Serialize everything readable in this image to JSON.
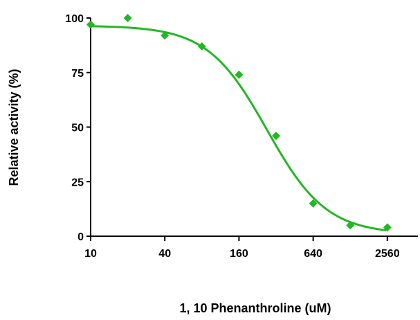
{
  "chart_data": {
    "type": "scatter",
    "title": "",
    "xlabel": "1, 10 Phenanthroline (uM)",
    "ylabel": "Relative activity (%)",
    "x_scale": "log2",
    "xlim": [
      10,
      3200
    ],
    "ylim": [
      0,
      100
    ],
    "x_ticks": [
      {
        "value": 10,
        "label": "10"
      },
      {
        "value": 40,
        "label": "40"
      },
      {
        "value": 160,
        "label": "160"
      },
      {
        "value": 640,
        "label": "640"
      },
      {
        "value": 2560,
        "label": "2560"
      }
    ],
    "y_ticks": [
      {
        "value": 0,
        "label": "0"
      },
      {
        "value": 25,
        "label": "25"
      },
      {
        "value": 50,
        "label": "50"
      },
      {
        "value": 75,
        "label": "75"
      },
      {
        "value": 100,
        "label": "100"
      }
    ],
    "grid": false,
    "legend": "none",
    "color": "#22b822",
    "marker": "diamond",
    "series": [
      {
        "points": [
          {
            "x": 10,
            "y": 97
          },
          {
            "x": 20,
            "y": 100
          },
          {
            "x": 40,
            "y": 92
          },
          {
            "x": 80,
            "y": 87
          },
          {
            "x": 160,
            "y": 74
          },
          {
            "x": 320,
            "y": 46
          },
          {
            "x": 640,
            "y": 15
          },
          {
            "x": 1280,
            "y": 5
          },
          {
            "x": 2560,
            "y": 4
          }
        ]
      }
    ],
    "fit_curve": {
      "model": "sigmoidal dose-response",
      "top": 96.5,
      "bottom": 1,
      "ic50": 270,
      "hill_slope": 1.8,
      "x_range": [
        10,
        2500
      ]
    }
  }
}
